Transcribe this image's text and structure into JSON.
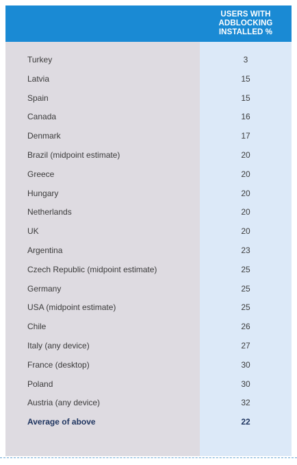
{
  "chart_data": {
    "type": "table",
    "column_header": [
      "USERS WITH",
      "ADBLOCKING",
      "INSTALLED %"
    ],
    "rows": [
      {
        "country": "Turkey",
        "value": 3
      },
      {
        "country": "Latvia",
        "value": 15
      },
      {
        "country": "Spain",
        "value": 15
      },
      {
        "country": "Canada",
        "value": 16
      },
      {
        "country": "Denmark",
        "value": 17
      },
      {
        "country": "Brazil (midpoint estimate)",
        "value": 20
      },
      {
        "country": "Greece",
        "value": 20
      },
      {
        "country": "Hungary",
        "value": 20
      },
      {
        "country": "Netherlands",
        "value": 20
      },
      {
        "country": "UK",
        "value": 20
      },
      {
        "country": "Argentina",
        "value": 23
      },
      {
        "country": "Czech Republic (midpoint estimate)",
        "value": 25
      },
      {
        "country": "Germany",
        "value": 25
      },
      {
        "country": "USA (midpoint estimate)",
        "value": 25
      },
      {
        "country": "Chile",
        "value": 26
      },
      {
        "country": "Italy (any device)",
        "value": 27
      },
      {
        "country": "France (desktop)",
        "value": 30
      },
      {
        "country": "Poland",
        "value": 30
      },
      {
        "country": "Austria (any device)",
        "value": 32
      }
    ],
    "average": {
      "label": "Average of above",
      "value": 22
    }
  },
  "colors": {
    "header_bg": "#1a8ad4",
    "left_col_bg": "#dedbe1",
    "right_col_bg": "#dce9f8",
    "average_text": "#1f3560"
  }
}
